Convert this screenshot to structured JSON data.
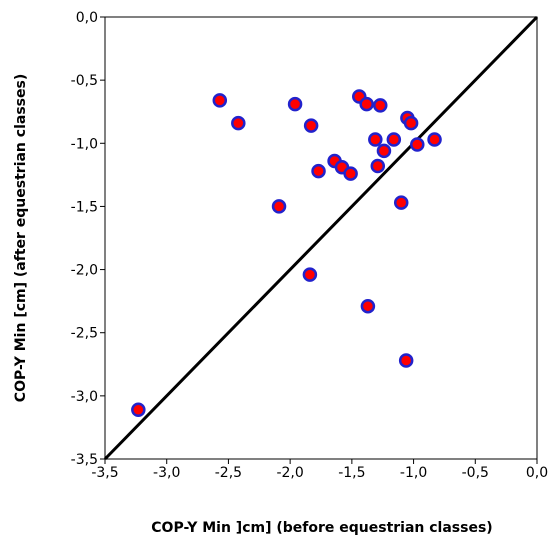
{
  "chart_data": {
    "type": "scatter",
    "title": "",
    "xlabel": "COP-Y  Min ]cm] (before equestrian classes)",
    "ylabel": "COP-Y Min [cm] (after equestrian classes)",
    "xlim": [
      -3.5,
      0.0
    ],
    "ylim": [
      -3.5,
      0.0
    ],
    "xticks": [
      "-3,5",
      "-3,0",
      "-2,5",
      "-2,0",
      "-1,5",
      "-1,0",
      "-0,5",
      "0,0"
    ],
    "yticks": [
      "0,0",
      "-0,5",
      "-1,0",
      "-1,5",
      "-2,0",
      "-2,5",
      "-3,0",
      "-3,5"
    ],
    "grid": false,
    "reference_line": {
      "label": "",
      "x": [
        -3.5,
        0.0
      ],
      "y": [
        -3.5,
        0.0
      ],
      "color": "#000000"
    },
    "marker_fill": "#ff0000",
    "marker_edge": "#2222cc",
    "points": [
      {
        "x": -3.23,
        "y": -3.11
      },
      {
        "x": -2.57,
        "y": -0.66
      },
      {
        "x": -2.42,
        "y": -0.84
      },
      {
        "x": -1.96,
        "y": -0.69
      },
      {
        "x": -2.09,
        "y": -1.5
      },
      {
        "x": -1.83,
        "y": -0.86
      },
      {
        "x": -1.77,
        "y": -1.22
      },
      {
        "x": -1.84,
        "y": -2.04
      },
      {
        "x": -1.64,
        "y": -1.14
      },
      {
        "x": -1.58,
        "y": -1.19
      },
      {
        "x": -1.51,
        "y": -1.24
      },
      {
        "x": -1.44,
        "y": -0.63
      },
      {
        "x": -1.38,
        "y": -0.69
      },
      {
        "x": -1.31,
        "y": -0.97
      },
      {
        "x": -1.27,
        "y": -0.7
      },
      {
        "x": -1.24,
        "y": -1.06
      },
      {
        "x": -1.29,
        "y": -1.18
      },
      {
        "x": -1.16,
        "y": -0.97
      },
      {
        "x": -1.05,
        "y": -0.8
      },
      {
        "x": -1.02,
        "y": -0.84
      },
      {
        "x": -0.97,
        "y": -1.01
      },
      {
        "x": -0.83,
        "y": -0.97
      },
      {
        "x": -1.1,
        "y": -1.47
      },
      {
        "x": -1.37,
        "y": -2.29
      },
      {
        "x": -1.06,
        "y": -2.72
      }
    ]
  }
}
